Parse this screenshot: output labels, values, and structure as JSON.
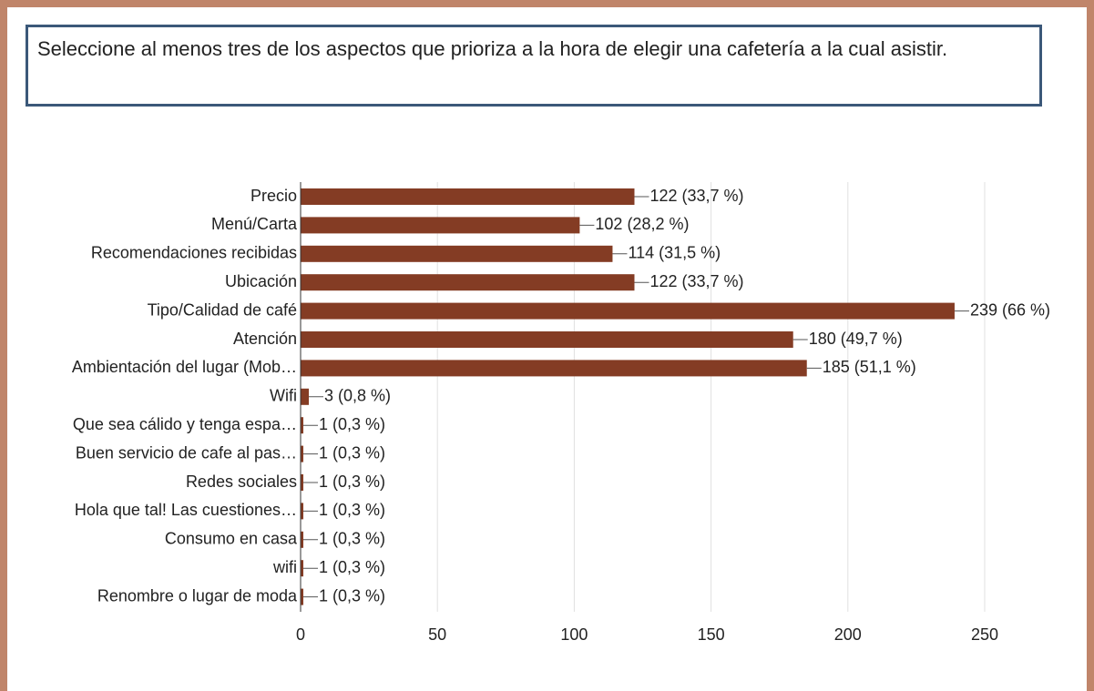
{
  "chart_data": {
    "type": "bar",
    "orientation": "horizontal",
    "title": "Seleccione al menos tres de los aspectos que prioriza a la hora de elegir una cafetería a la cual asistir.",
    "categories": [
      "Precio",
      "Menú/Carta",
      "Recomendaciones recibidas",
      "Ubicación",
      "Tipo/Calidad de café",
      "Atención",
      "Ambientación del lugar (Mob…",
      "Wifi",
      "Que sea cálido y tenga espa…",
      "Buen servicio de cafe al pas…",
      "Redes sociales",
      "Hola que tal! Las cuestiones…",
      "Consumo en casa",
      "wifi",
      "Renombre o lugar de moda"
    ],
    "values": [
      122,
      102,
      114,
      122,
      239,
      180,
      185,
      3,
      1,
      1,
      1,
      1,
      1,
      1,
      1
    ],
    "value_labels": [
      "122 (33,7 %)",
      "102 (28,2 %)",
      "114 (31,5 %)",
      "122 (33,7 %)",
      "239 (66 %)",
      "180 (49,7 %)",
      "185 (51,1 %)",
      "3 (0,8 %)",
      "1 (0,3 %)",
      "1 (0,3 %)",
      "1 (0,3 %)",
      "1 (0,3 %)",
      "1 (0,3 %)",
      "1 (0,3 %)",
      "1 (0,3 %)"
    ],
    "color": "#843c24",
    "xlim": [
      0,
      250
    ],
    "xticks": [
      0,
      50,
      100,
      150,
      200,
      250
    ],
    "grid": true
  }
}
